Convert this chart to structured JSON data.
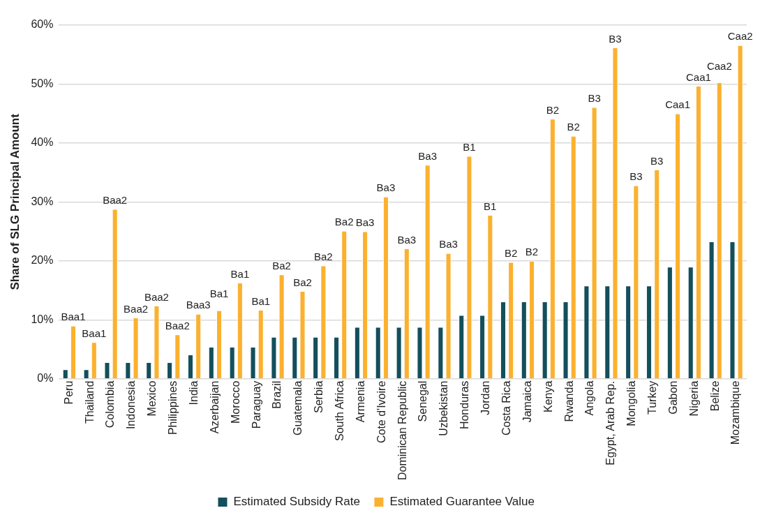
{
  "chart_data": {
    "type": "bar",
    "ylabel": "Share of SLG Principal Amount",
    "categories": [
      "Peru",
      "Thailand",
      "Colombia",
      "Indonesia",
      "Mexico",
      "Philippines",
      "India",
      "Azerbaijan",
      "Morocco",
      "Paraguay",
      "Brazil",
      "Guatemala",
      "Serbia",
      "South Africa",
      "Armenia",
      "Cote d'Ivoire",
      "Dominican Republic",
      "Senegal",
      "Uzbekistan",
      "Honduras",
      "Jordan",
      "Costa Rica",
      "Jamaica",
      "Kenya",
      "Rwanda",
      "Angola",
      "Egypt, Arab Rep.",
      "Mongolia",
      "Turkey",
      "Gabon",
      "Nigeria",
      "Belize",
      "Mozambique"
    ],
    "series": [
      {
        "name": "Estimated Subsidy Rate",
        "color": "#134f5c",
        "values": [
          1.6,
          1.6,
          2.8,
          2.8,
          2.8,
          2.8,
          4.1,
          5.4,
          5.4,
          5.4,
          7.1,
          7.1,
          7.1,
          7.1,
          8.8,
          8.8,
          8.8,
          8.8,
          8.8,
          10.8,
          10.8,
          13.1,
          13.1,
          13.1,
          13.1,
          15.8,
          15.8,
          15.8,
          15.8,
          19.0,
          19.0,
          23.3,
          23.3
        ]
      },
      {
        "name": "Estimated Guarantee Value",
        "color": "#fbb12f",
        "values": [
          9.0,
          6.2,
          28.8,
          10.4,
          12.4,
          7.5,
          11.0,
          11.6,
          16.3,
          11.7,
          17.7,
          14.9,
          19.2,
          25.1,
          25.0,
          30.9,
          22.1,
          36.3,
          21.3,
          37.8,
          27.8,
          19.8,
          20.0,
          44.1,
          41.2,
          46.1,
          56.2,
          32.8,
          35.5,
          45.0,
          49.7,
          50.3,
          56.6
        ],
        "value_labels": [
          "Baa1",
          "Baa1",
          "Baa2",
          "Baa2",
          "Baa2",
          "Baa2",
          "Baa3",
          "Ba1",
          "Ba1",
          "Ba1",
          "Ba2",
          "Ba2",
          "Ba2",
          "Ba2",
          "Ba3",
          "Ba3",
          "Ba3",
          "Ba3",
          "Ba3",
          "B1",
          "B1",
          "B2",
          "B2",
          "B2",
          "B2",
          "B3",
          "B3",
          "B3",
          "B3",
          "Caa1",
          "Caa1",
          "Caa2",
          "Caa2"
        ]
      }
    ],
    "ylim": [
      0,
      60
    ],
    "yticks": [
      {
        "value": 0,
        "label": "0%"
      },
      {
        "value": 10,
        "label": "10%"
      },
      {
        "value": 20,
        "label": "20%"
      },
      {
        "value": 30,
        "label": "30%"
      },
      {
        "value": 40,
        "label": "40%"
      },
      {
        "value": 50,
        "label": "50%"
      },
      {
        "value": 60,
        "label": "60%"
      }
    ],
    "grid": "y",
    "legend": "bottom"
  }
}
